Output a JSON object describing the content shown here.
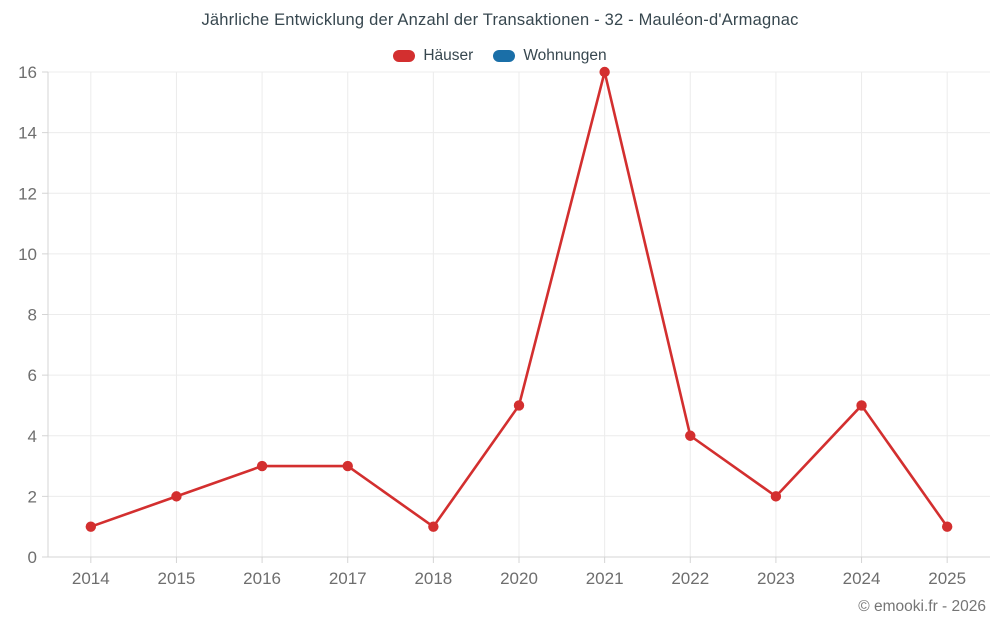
{
  "title": "Jährliche Entwicklung der Anzahl der Transaktionen - 32 - Mauléon-d'Armagnac",
  "footer": {
    "credit": "© emooki.fr - 2026"
  },
  "colors": {
    "background": "#ffffff",
    "title_text": "#37474f",
    "tick_text": "#6e6e6e",
    "grid_line": "#ececec",
    "axis_line": "#d4d4d4",
    "haeuser_red": "#d32f2f",
    "wohnungen_blue": "#1a6fa8"
  },
  "chart_data": {
    "type": "line",
    "title": "Jährliche Entwicklung der Anzahl der Transaktionen - 32 - Mauléon-d'Armagnac",
    "categories": [
      "2014",
      "2015",
      "2016",
      "2017",
      "2018",
      "2020",
      "2021",
      "2022",
      "2023",
      "2024",
      "2025"
    ],
    "series": [
      {
        "name": "Häuser",
        "color": "#d32f2f",
        "values": [
          1,
          2,
          3,
          3,
          1,
          5,
          16,
          4,
          2,
          5,
          1
        ]
      },
      {
        "name": "Wohnungen",
        "color": "#1a6fa8",
        "values": []
      }
    ],
    "xlabel": "",
    "ylabel": "",
    "ylim": [
      0,
      16
    ],
    "yticks": [
      0,
      2,
      4,
      6,
      8,
      10,
      12,
      14,
      16
    ],
    "grid": true,
    "legend_position": "top",
    "marker": "circle"
  }
}
